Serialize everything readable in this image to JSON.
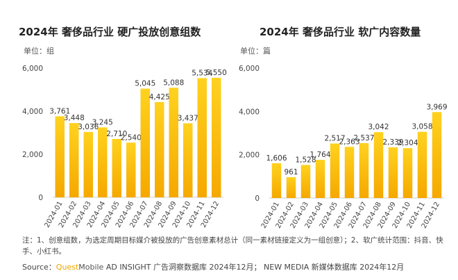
{
  "notes_text": "注：1、创意组数，为选定周期目标媒介被投放的广告创意素材总计（同一素材链接定义为一组创意）；2、软广统计范围：抖音、快手、小红书。",
  "source": {
    "prefix": "Source：",
    "brand_part1": "Quest",
    "brand_part2": "Mobile",
    "suffix": " AD INSIGHT 广告洞察数据库 2024年12月； NEW MEDIA 新媒体数据库 2024年12月"
  },
  "colors": {
    "bar_top": "#ffd21f",
    "bar_bottom": "#f5a800",
    "axis": "#cccccc"
  },
  "chart_data": [
    {
      "type": "bar",
      "title": "2024年 奢侈品行业 硬广投放创意组数",
      "unit": "单位：组",
      "ylim": [
        0,
        6000
      ],
      "yticks": [
        "0",
        "2,000",
        "4,000",
        "6,000"
      ],
      "ytick_values": [
        0,
        2000,
        4000,
        6000
      ],
      "categories": [
        "2024-01",
        "2024-02",
        "2024-03",
        "2024-04",
        "2024-05",
        "2024-06",
        "2024-07",
        "2024-08",
        "2024-09",
        "2024-10",
        "2024-11",
        "2024-12"
      ],
      "values": [
        3761,
        3448,
        3036,
        3245,
        2710,
        2540,
        5045,
        4425,
        5088,
        3437,
        5534,
        5550
      ],
      "value_labels": [
        "3,761",
        "3,448",
        "3,036",
        "3,245",
        "2,710",
        "2,540",
        "5,045",
        "4,425",
        "5,088",
        "3,437",
        "5,534",
        "5,550"
      ]
    },
    {
      "type": "bar",
      "title": "2024年 奢侈品行业 软广内容数量",
      "unit": "单位：篇",
      "ylim": [
        0,
        6000
      ],
      "yticks": [
        "0",
        "2,000",
        "4,000",
        "6,000"
      ],
      "ytick_values": [
        0,
        2000,
        4000,
        6000
      ],
      "categories": [
        "2024-01",
        "2024-02",
        "2024-03",
        "2024-04",
        "2024-05",
        "2024-06",
        "2024-07",
        "2024-08",
        "2024-09",
        "2024-10",
        "2024-11",
        "2024-12"
      ],
      "values": [
        1606,
        961,
        1528,
        1764,
        2517,
        2363,
        2537,
        3042,
        2339,
        2304,
        3058,
        3969
      ],
      "value_labels": [
        "1,606",
        "961",
        "1,528",
        "1,764",
        "2,517",
        "2,363",
        "2,537",
        "3,042",
        "2,339",
        "2,304",
        "3,058",
        "3,969"
      ]
    }
  ]
}
